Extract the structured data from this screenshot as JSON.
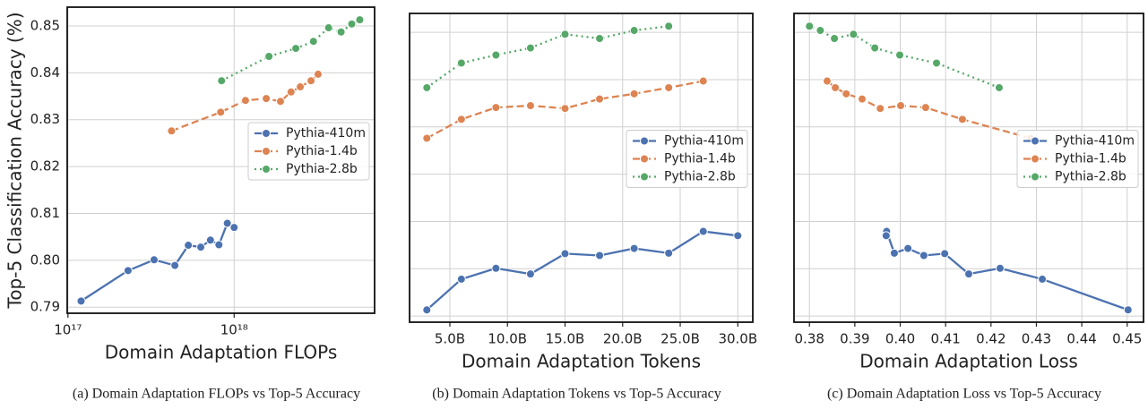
{
  "chart_data": [
    {
      "type": "line",
      "xscale": "log",
      "xlabel": "Domain Adaptation FLOPs",
      "ylabel": "Top-5 Classification Accuracy (%)",
      "caption": "(a) Domain Adaptation FLOPs vs Top-5 Accuracy",
      "xlim": [
        9.9e+16,
        7e+18
      ],
      "xticks": [
        {
          "value": 1e+17,
          "label": "10¹⁷"
        },
        {
          "value": 1e+18,
          "label": "10¹⁸"
        }
      ],
      "ylim": [
        0.7887,
        0.854
      ],
      "yticks": [
        0.79,
        {
          "value": 0.8,
          "label": "0.80"
        },
        0.81,
        0.82,
        0.83,
        0.84,
        0.85
      ],
      "grid": true,
      "legend": "center right",
      "series": [
        {
          "name": "Pythia-410m",
          "color": "#4c72b0",
          "linestyle": "solid",
          "x": [
            1.2e+17,
            2.3e+17,
            3.3e+17,
            4.4e+17,
            5.3e+17,
            6.3e+17,
            7.2e+17,
            8.1e+17,
            9.1e+17,
            1e+18
          ],
          "values": [
            0.7913,
            0.7978,
            0.8001,
            0.7989,
            0.8032,
            0.8028,
            0.8043,
            0.8033,
            0.8079,
            0.807
          ]
        },
        {
          "name": "Pythia-1.4b",
          "color": "#dd8452",
          "linestyle": "dashed",
          "x": [
            4.2e+17,
            8.3e+17,
            1.17e+18,
            1.56e+18,
            1.9e+18,
            2.2e+18,
            2.5e+18,
            2.9e+18,
            3.2e+18
          ],
          "values": [
            0.8276,
            0.8316,
            0.8341,
            0.8345,
            0.8339,
            0.8359,
            0.837,
            0.8383,
            0.8397
          ]
        },
        {
          "name": "Pythia-2.8b",
          "color": "#55a868",
          "linestyle": "dotted",
          "x": [
            8.4e+17,
            1.62e+18,
            2.35e+18,
            3e+18,
            3.7e+18,
            4.4e+18,
            5.1e+18,
            5.7e+18
          ],
          "values": [
            0.8383,
            0.8435,
            0.8452,
            0.8467,
            0.8496,
            0.8487,
            0.8504,
            0.8513
          ]
        }
      ]
    },
    {
      "type": "line",
      "xlabel": "Domain Adaptation Tokens",
      "caption": "(b) Domain Adaptation Tokens vs Top-5 Accuracy",
      "xlim": [
        1.5,
        31.3
      ],
      "xticks": [
        {
          "value": 5,
          "label": "5.0B"
        },
        {
          "value": 10,
          "label": "10.0B"
        },
        {
          "value": 15,
          "label": "15.0B"
        },
        {
          "value": 20,
          "label": "20.0B"
        },
        {
          "value": 25,
          "label": "25.0B"
        },
        {
          "value": 30,
          "label": "30.0B"
        }
      ],
      "ylim": [
        0.7887,
        0.854
      ],
      "yticks": [
        0.79,
        0.8,
        0.81,
        0.82,
        0.83,
        0.84,
        0.85
      ],
      "grid": true,
      "legend": "center right",
      "series": [
        {
          "name": "Pythia-410m",
          "color": "#4c72b0",
          "linestyle": "solid",
          "x": [
            3,
            6,
            9,
            12,
            15,
            18,
            21,
            24,
            27,
            30
          ],
          "values": [
            0.7913,
            0.7978,
            0.8001,
            0.7989,
            0.8032,
            0.8028,
            0.8043,
            0.8033,
            0.8079,
            0.807
          ]
        },
        {
          "name": "Pythia-1.4b",
          "color": "#dd8452",
          "linestyle": "dashed",
          "x": [
            3,
            6,
            9,
            12,
            15,
            18,
            21,
            24,
            27
          ],
          "values": [
            0.8276,
            0.8316,
            0.8341,
            0.8345,
            0.8339,
            0.8359,
            0.837,
            0.8383,
            0.8397
          ]
        },
        {
          "name": "Pythia-2.8b",
          "color": "#55a868",
          "linestyle": "dotted",
          "x": [
            3,
            6,
            9,
            12,
            15,
            18,
            21,
            24
          ],
          "values": [
            0.8383,
            0.8435,
            0.8452,
            0.8467,
            0.8496,
            0.8487,
            0.8504,
            0.8513
          ]
        }
      ]
    },
    {
      "type": "line",
      "xlabel": "Domain Adaptation Loss",
      "caption": "(c) Domain Adaptation Loss vs Top-5 Accuracy",
      "xlim": [
        0.3766,
        0.4536
      ],
      "xticks": [
        0.38,
        0.39,
        {
          "value": 0.4,
          "label": "0.40"
        },
        0.41,
        0.42,
        0.43,
        0.44,
        0.45
      ],
      "ylim": [
        0.7887,
        0.854
      ],
      "yticks": [
        0.79,
        0.8,
        0.81,
        0.82,
        0.83,
        0.84,
        0.85
      ],
      "grid": true,
      "legend": "center right",
      "series": [
        {
          "name": "Pythia-410m",
          "color": "#4c72b0",
          "linestyle": "solid",
          "x": [
            0.4502,
            0.4313,
            0.422,
            0.4151,
            0.4098,
            0.4052,
            0.4017,
            0.3987,
            0.397,
            0.3969
          ],
          "values": [
            0.7913,
            0.7978,
            0.8001,
            0.7989,
            0.8032,
            0.8028,
            0.8043,
            0.8033,
            0.8079,
            0.807
          ]
        },
        {
          "name": "Pythia-1.4b",
          "color": "#dd8452",
          "linestyle": "dashed",
          "x": [
            0.4287,
            0.4137,
            0.4056,
            0.4001,
            0.3956,
            0.3916,
            0.3881,
            0.3857,
            0.3839
          ],
          "values": [
            0.8276,
            0.8316,
            0.8341,
            0.8345,
            0.8339,
            0.8359,
            0.837,
            0.8383,
            0.8397
          ]
        },
        {
          "name": "Pythia-2.8b",
          "color": "#55a868",
          "linestyle": "dotted",
          "x": [
            0.4218,
            0.408,
            0.3999,
            0.3944,
            0.3897,
            0.3855,
            0.3824,
            0.38
          ],
          "values": [
            0.8383,
            0.8435,
            0.8452,
            0.8467,
            0.8496,
            0.8487,
            0.8504,
            0.8513
          ]
        }
      ]
    }
  ]
}
